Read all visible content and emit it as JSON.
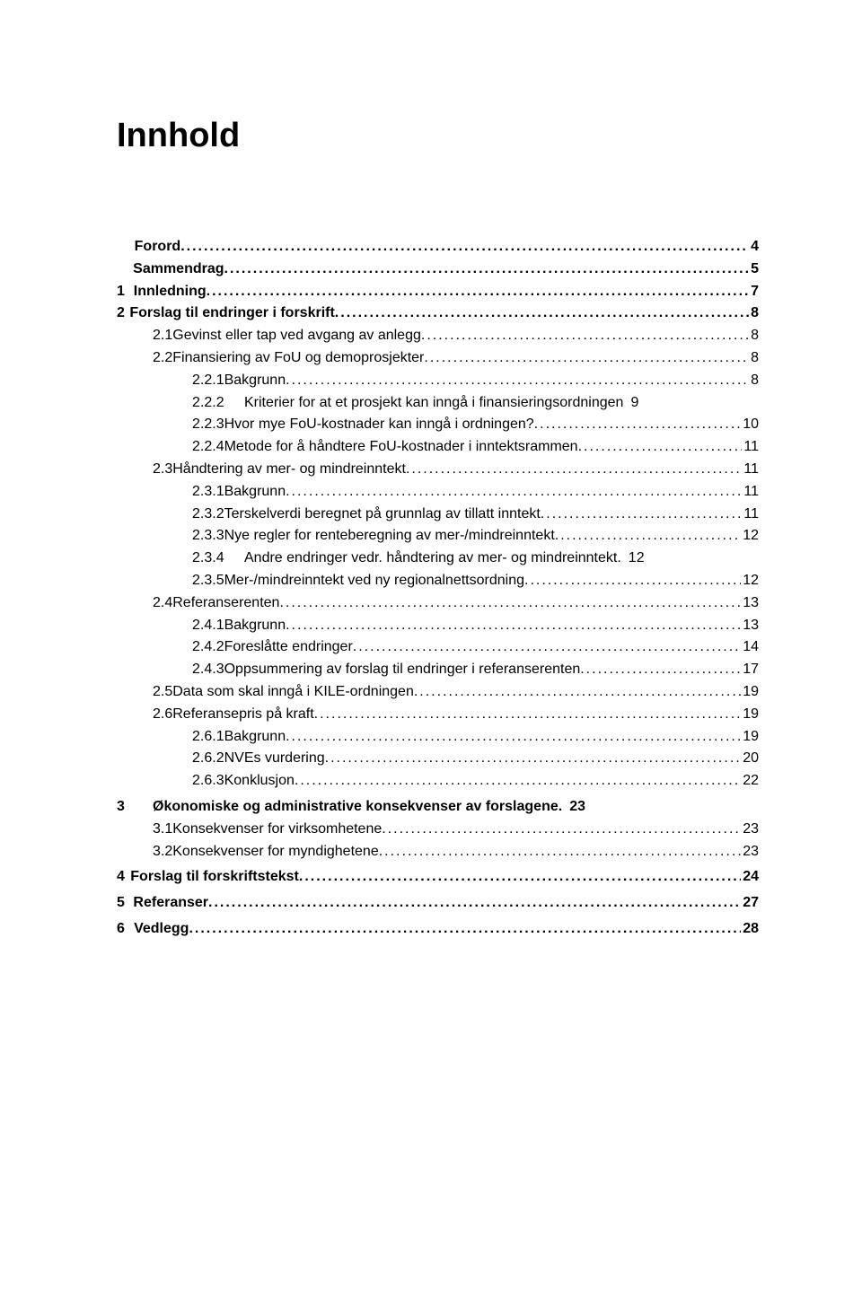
{
  "title": "Innhold",
  "background_color": "#ffffff",
  "text_color": "#000000",
  "font_family": "Arial",
  "title_fontsize": 38,
  "body_fontsize": 16,
  "dot_char": ".",
  "toc": [
    {
      "level": 1,
      "num": "",
      "label": "Forord",
      "page": "4",
      "bold": true,
      "nodots": false
    },
    {
      "level": 1,
      "num": "",
      "label": "Sammendrag",
      "page": "5",
      "bold": true,
      "nodots": false
    },
    {
      "level": 1,
      "num": "1",
      "label": "Innledning",
      "page": "7",
      "bold": true,
      "nodots": false
    },
    {
      "level": 1,
      "num": "2",
      "label": "Forslag til endringer i forskrift",
      "page": "8",
      "bold": true,
      "nodots": false
    },
    {
      "level": 2,
      "num": "2.1",
      "label": "Gevinst eller tap ved avgang av anlegg",
      "page": "8",
      "bold": false,
      "nodots": false
    },
    {
      "level": 2,
      "num": "2.2",
      "label": "Finansiering av FoU og demoprosjekter",
      "page": "8",
      "bold": false,
      "nodots": false
    },
    {
      "level": 3,
      "num": "2.2.1",
      "label": "Bakgrunn",
      "page": "8",
      "bold": false,
      "nodots": false
    },
    {
      "level": 3,
      "num": "2.2.2",
      "label": "Kriterier for at et prosjekt kan inngå i finansieringsordningen",
      "page": "9",
      "bold": false,
      "nodots": true
    },
    {
      "level": 3,
      "num": "2.2.3",
      "label": "Hvor mye FoU-kostnader kan inngå i ordningen?",
      "page": "10",
      "bold": false,
      "nodots": false
    },
    {
      "level": 3,
      "num": "2.2.4",
      "label": "Metode for å håndtere FoU-kostnader i inntektsrammen",
      "page": "11",
      "bold": false,
      "nodots": false
    },
    {
      "level": 2,
      "num": "2.3",
      "label": "Håndtering av mer- og mindreinntekt",
      "page": "11",
      "bold": false,
      "nodots": false
    },
    {
      "level": 3,
      "num": "2.3.1",
      "label": "Bakgrunn",
      "page": "11",
      "bold": false,
      "nodots": false
    },
    {
      "level": 3,
      "num": "2.3.2",
      "label": "Terskelverdi beregnet på grunnlag av tillatt inntekt",
      "page": "11",
      "bold": false,
      "nodots": false
    },
    {
      "level": 3,
      "num": "2.3.3",
      "label": "Nye regler for renteberegning av mer-/mindreinntekt",
      "page": "12",
      "bold": false,
      "nodots": false
    },
    {
      "level": 3,
      "num": "2.3.4",
      "label": "Andre endringer vedr. håndtering av mer- og mindreinntekt.",
      "page": "12",
      "bold": false,
      "nodots": true
    },
    {
      "level": 3,
      "num": "2.3.5",
      "label": "Mer-/mindreinntekt ved ny regionalnettsordning",
      "page": "12",
      "bold": false,
      "nodots": false
    },
    {
      "level": 2,
      "num": "2.4",
      "label": "Referanserenten",
      "page": "13",
      "bold": false,
      "nodots": false
    },
    {
      "level": 3,
      "num": "2.4.1",
      "label": "Bakgrunn",
      "page": "13",
      "bold": false,
      "nodots": false
    },
    {
      "level": 3,
      "num": "2.4.2",
      "label": "Foreslåtte endringer",
      "page": "14",
      "bold": false,
      "nodots": false
    },
    {
      "level": 3,
      "num": "2.4.3",
      "label": "Oppsummering av forslag til endringer i referanserenten",
      "page": "17",
      "bold": false,
      "nodots": false
    },
    {
      "level": 2,
      "num": "2.5",
      "label": "Data som skal inngå i KILE-ordningen",
      "page": "19",
      "bold": false,
      "nodots": false
    },
    {
      "level": 2,
      "num": "2.6",
      "label": "Referansepris på kraft",
      "page": "19",
      "bold": false,
      "nodots": false
    },
    {
      "level": 3,
      "num": "2.6.1",
      "label": "Bakgrunn",
      "page": "19",
      "bold": false,
      "nodots": false
    },
    {
      "level": 3,
      "num": "2.6.2",
      "label": "NVEs vurdering",
      "page": "20",
      "bold": false,
      "nodots": false
    },
    {
      "level": 3,
      "num": "2.6.3",
      "label": "Konklusjon",
      "page": "22",
      "bold": false,
      "nodots": false
    },
    {
      "level": 1,
      "num": "3",
      "label": "Økonomiske og administrative konsekvenser av forslagene.",
      "page": "23",
      "bold": true,
      "nodots": true,
      "gap_before": true
    },
    {
      "level": 2,
      "num": "3.1",
      "label": "Konsekvenser for virksomhetene",
      "page": "23",
      "bold": false,
      "nodots": false
    },
    {
      "level": 2,
      "num": "3.2",
      "label": "Konsekvenser for myndighetene",
      "page": "23",
      "bold": false,
      "nodots": false
    },
    {
      "level": 1,
      "num": "4",
      "label": "Forslag til forskriftstekst",
      "page": "24",
      "bold": true,
      "nodots": false,
      "gap_before": true
    },
    {
      "level": 1,
      "num": "5",
      "label": "Referanser",
      "page": "27",
      "bold": true,
      "nodots": false,
      "gap_before": true
    },
    {
      "level": 1,
      "num": "6",
      "label": "Vedlegg",
      "page": "28",
      "bold": true,
      "nodots": false,
      "gap_before": true
    }
  ]
}
